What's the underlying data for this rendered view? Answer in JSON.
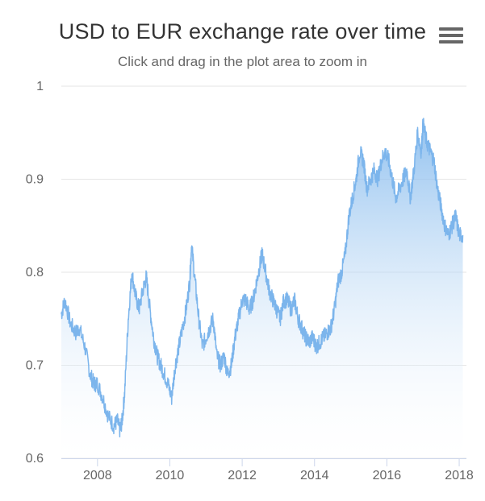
{
  "title": "USD to EUR exchange rate over time",
  "subtitle": "Click and drag in the plot area to zoom in",
  "menu_icon": "hamburger-menu-icon",
  "colors": {
    "line": "#7cb5ec",
    "area_top": "#7cb5ec",
    "area_bottom": "#ffffff",
    "grid": "#e6e6e6",
    "axis_line": "#ccd6eb"
  },
  "chart_data": {
    "type": "area",
    "title": "USD to EUR exchange rate over time",
    "subtitle": "Click and drag in the plot area to zoom in",
    "xlabel": "",
    "ylabel": "",
    "xlim": [
      2007.0,
      2018.2
    ],
    "ylim": [
      0.6,
      1.0
    ],
    "y_ticks": [
      "0.6",
      "0.7",
      "0.8",
      "0.9",
      "1"
    ],
    "x_ticks": [
      "2008",
      "2010",
      "2012",
      "2014",
      "2016",
      "2018"
    ],
    "grid": true,
    "legend": "none",
    "series": [
      {
        "x": [
          2007.0,
          2007.1,
          2007.25,
          2007.4,
          2007.5,
          2007.65,
          2007.8,
          2007.9,
          2008.0,
          2008.15,
          2008.3,
          2008.45,
          2008.55,
          2008.62,
          2008.68,
          2008.75,
          2008.85,
          2008.95,
          2009.05,
          2009.15,
          2009.25,
          2009.35,
          2009.45,
          2009.55,
          2009.65,
          2009.75,
          2009.85,
          2009.95,
          2010.05,
          2010.15,
          2010.25,
          2010.35,
          2010.45,
          2010.55,
          2010.6,
          2010.7,
          2010.8,
          2010.9,
          2011.0,
          2011.1,
          2011.2,
          2011.3,
          2011.4,
          2011.5,
          2011.6,
          2011.7,
          2011.8,
          2011.9,
          2012.0,
          2012.1,
          2012.2,
          2012.3,
          2012.4,
          2012.5,
          2012.55,
          2012.65,
          2012.75,
          2012.85,
          2012.95,
          2013.05,
          2013.15,
          2013.25,
          2013.35,
          2013.45,
          2013.55,
          2013.65,
          2013.75,
          2013.85,
          2013.95,
          2014.05,
          2014.15,
          2014.25,
          2014.35,
          2014.45,
          2014.55,
          2014.65,
          2014.75,
          2014.85,
          2014.95,
          2015.05,
          2015.15,
          2015.25,
          2015.35,
          2015.45,
          2015.55,
          2015.65,
          2015.75,
          2015.85,
          2015.95,
          2016.05,
          2016.15,
          2016.25,
          2016.35,
          2016.45,
          2016.55,
          2016.65,
          2016.75,
          2016.85,
          2016.95,
          2017.0,
          2017.1,
          2017.2,
          2017.3,
          2017.4,
          2017.5,
          2017.6,
          2017.7,
          2017.8,
          2017.9,
          2018.0,
          2018.1
        ],
        "y": [
          0.755,
          0.77,
          0.745,
          0.735,
          0.74,
          0.72,
          0.69,
          0.68,
          0.68,
          0.665,
          0.645,
          0.635,
          0.64,
          0.63,
          0.64,
          0.67,
          0.75,
          0.8,
          0.775,
          0.76,
          0.78,
          0.795,
          0.76,
          0.73,
          0.71,
          0.7,
          0.69,
          0.68,
          0.665,
          0.7,
          0.72,
          0.74,
          0.76,
          0.79,
          0.83,
          0.79,
          0.75,
          0.72,
          0.73,
          0.74,
          0.75,
          0.71,
          0.7,
          0.71,
          0.69,
          0.7,
          0.73,
          0.75,
          0.77,
          0.77,
          0.76,
          0.77,
          0.79,
          0.81,
          0.82,
          0.8,
          0.78,
          0.77,
          0.76,
          0.75,
          0.77,
          0.77,
          0.76,
          0.77,
          0.75,
          0.74,
          0.73,
          0.725,
          0.73,
          0.72,
          0.725,
          0.73,
          0.735,
          0.74,
          0.76,
          0.79,
          0.8,
          0.82,
          0.86,
          0.88,
          0.9,
          0.93,
          0.92,
          0.89,
          0.9,
          0.91,
          0.9,
          0.92,
          0.93,
          0.92,
          0.9,
          0.88,
          0.89,
          0.9,
          0.91,
          0.88,
          0.91,
          0.95,
          0.93,
          0.96,
          0.94,
          0.93,
          0.92,
          0.89,
          0.87,
          0.85,
          0.84,
          0.85,
          0.86,
          0.84,
          0.84
        ]
      }
    ]
  }
}
